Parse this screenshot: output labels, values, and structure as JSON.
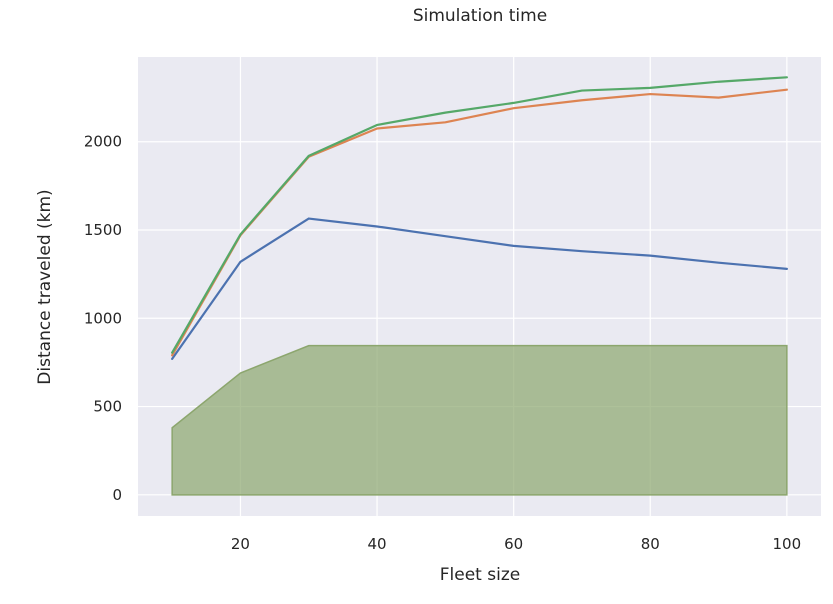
{
  "chart_data": {
    "type": "line",
    "title": "Simulation time",
    "xlabel": "Fleet size",
    "ylabel": "Distance traveled (km)",
    "xlim": [
      5,
      105
    ],
    "ylim": [
      -120,
      2480
    ],
    "grid": true,
    "legend": "none",
    "xticks": [
      20,
      40,
      60,
      80,
      100
    ],
    "yticks": [
      0,
      500,
      1000,
      1500,
      2000
    ],
    "area": {
      "color": "#8ca66e",
      "x": [
        10,
        20,
        30,
        40,
        50,
        60,
        70,
        80,
        90,
        100
      ],
      "values": [
        380,
        690,
        845,
        845,
        845,
        845,
        845,
        845,
        845,
        845
      ]
    },
    "series": [
      {
        "color": "#4c72b0",
        "x": [
          10,
          20,
          30,
          40,
          50,
          60,
          70,
          80,
          90,
          100
        ],
        "values": [
          770,
          1320,
          1565,
          1520,
          1465,
          1410,
          1380,
          1355,
          1315,
          1280
        ]
      },
      {
        "color": "#dd8452",
        "x": [
          10,
          20,
          30,
          40,
          50,
          60,
          70,
          80,
          90,
          100
        ],
        "values": [
          790,
          1470,
          1915,
          2075,
          2110,
          2190,
          2235,
          2270,
          2250,
          2295
        ]
      },
      {
        "color": "#55a868",
        "x": [
          10,
          20,
          30,
          40,
          50,
          60,
          70,
          80,
          90,
          100
        ],
        "values": [
          805,
          1475,
          1920,
          2095,
          2165,
          2220,
          2290,
          2305,
          2340,
          2365
        ]
      }
    ]
  }
}
